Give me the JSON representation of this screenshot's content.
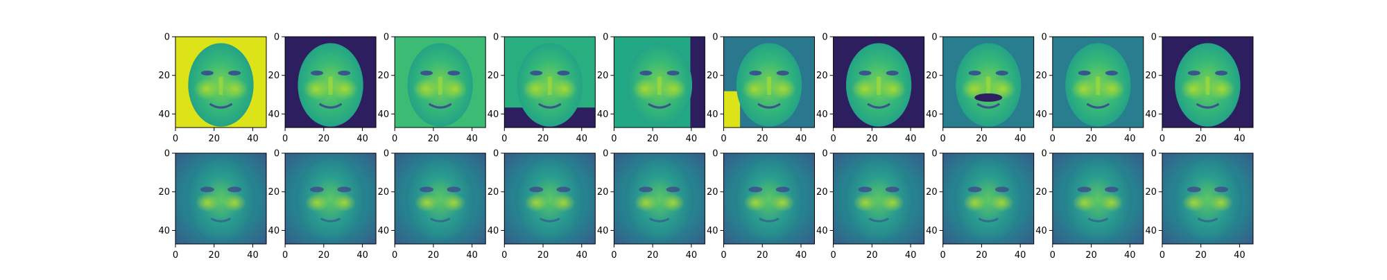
{
  "figure": {
    "background": "#ffffff",
    "colormap": "viridis"
  },
  "chart_data": {
    "type": "image_grid",
    "rows": 2,
    "cols": 10,
    "image_size": [
      48,
      48
    ],
    "xlim": [
      0,
      47
    ],
    "ylim": [
      47,
      0
    ],
    "xticks": [
      0,
      20,
      40
    ],
    "yticks": [
      0,
      20,
      40
    ],
    "colormap": "viridis",
    "row_content": [
      "original face images",
      "reconstructed face images"
    ],
    "panels": [
      {
        "row": 0,
        "col": 0,
        "content": "face",
        "background": "yellow"
      },
      {
        "row": 0,
        "col": 1,
        "content": "face",
        "background": "dark"
      },
      {
        "row": 0,
        "col": 2,
        "content": "face",
        "background": "green"
      },
      {
        "row": 0,
        "col": 3,
        "content": "face",
        "background": "dark-bottom-band"
      },
      {
        "row": 0,
        "col": 4,
        "content": "face",
        "background": "dark-right-band"
      },
      {
        "row": 0,
        "col": 5,
        "content": "face",
        "background": "yellow-left"
      },
      {
        "row": 0,
        "col": 6,
        "content": "face",
        "background": "dark"
      },
      {
        "row": 0,
        "col": 7,
        "content": "face with moustache",
        "background": "teal"
      },
      {
        "row": 0,
        "col": 8,
        "content": "face",
        "background": "teal"
      },
      {
        "row": 0,
        "col": 9,
        "content": "smiling face",
        "background": "dark"
      },
      {
        "row": 1,
        "col": 0,
        "content": "reconstruction"
      },
      {
        "row": 1,
        "col": 1,
        "content": "reconstruction"
      },
      {
        "row": 1,
        "col": 2,
        "content": "reconstruction"
      },
      {
        "row": 1,
        "col": 3,
        "content": "reconstruction"
      },
      {
        "row": 1,
        "col": 4,
        "content": "reconstruction"
      },
      {
        "row": 1,
        "col": 5,
        "content": "reconstruction"
      },
      {
        "row": 1,
        "col": 6,
        "content": "reconstruction"
      },
      {
        "row": 1,
        "col": 7,
        "content": "reconstruction"
      },
      {
        "row": 1,
        "col": 8,
        "content": "reconstruction"
      },
      {
        "row": 1,
        "col": 9,
        "content": "reconstruction"
      }
    ]
  }
}
